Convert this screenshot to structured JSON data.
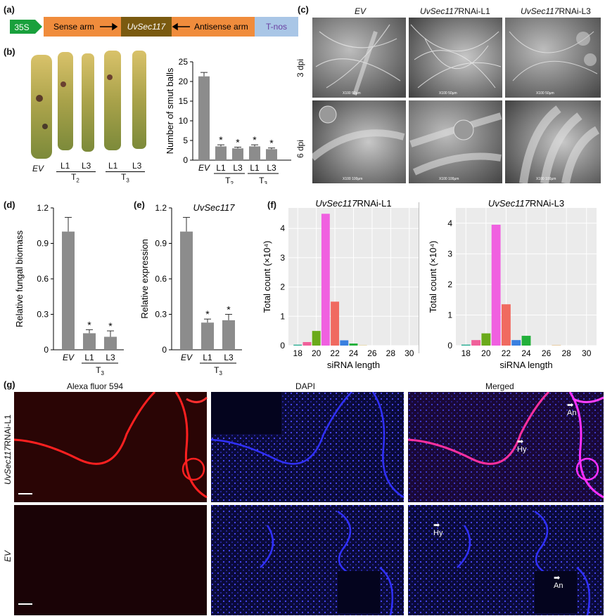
{
  "panel_labels": {
    "a": "(a)",
    "b": "(b)",
    "c": "(c)",
    "d": "(d)",
    "e": "(e)",
    "f": "(f)",
    "g": "(g)"
  },
  "construct": {
    "promoter": "35S",
    "sense": "Sense arm",
    "gene": "UvSec117",
    "antisense": "Antisense arm",
    "terminator": "T-nos"
  },
  "panel_b_photo": {
    "labels": [
      "EV",
      "L1",
      "L3",
      "L1",
      "L3"
    ],
    "groups": [
      {
        "label": "T",
        "sub": "2"
      },
      {
        "label": "T",
        "sub": "3"
      }
    ]
  },
  "panel_c": {
    "columns": [
      {
        "text": "EV",
        "italic": "EV",
        "rest": ""
      },
      {
        "text": "UvSec117RNAi-L1",
        "italic": "UvSec117",
        "rest": "RNAi-L1"
      },
      {
        "text": "UvSec117RNAi-L3",
        "italic": "UvSec117",
        "rest": "RNAi-L3"
      }
    ],
    "rows": [
      "3 dpi",
      "6 dpi"
    ],
    "sem_labels_top": [
      "X100",
      "50μm"
    ],
    "sem_labels_bottom": [
      "X100",
      "100μm"
    ]
  },
  "panel_g": {
    "columns": [
      "Alexa fluor 594",
      "DAPI",
      "Merged"
    ],
    "rows": [
      {
        "italic": "UvSec117",
        "rest": "RNAi-L1"
      },
      {
        "italic": "EV",
        "rest": ""
      }
    ],
    "arrows": [
      "An",
      "Hy",
      "Hy",
      "An"
    ]
  },
  "colors": {
    "bar": "#8c8c8c",
    "sense": "#f08c3c",
    "gene": "#7a5a10",
    "tnos": "#a9c6e6",
    "promoter": "#19a03c",
    "red": "#e81818",
    "blue": "#1818d8"
  },
  "chart_data": [
    {
      "id": "b",
      "type": "bar",
      "categories": [
        "EV",
        "L1",
        "L3",
        "L1",
        "L3"
      ],
      "values": [
        21.3,
        3.5,
        3.0,
        3.5,
        2.8
      ],
      "errors": [
        1.0,
        0.4,
        0.3,
        0.4,
        0.3
      ],
      "significant": [
        false,
        true,
        true,
        true,
        true
      ],
      "groups": [
        {
          "label": "T",
          "sub": "2"
        },
        {
          "label": "T",
          "sub": "3"
        }
      ],
      "ylabel": "Number of smut balls",
      "ylim": [
        0,
        25
      ],
      "yticks": [
        "0",
        "5",
        "10",
        "15",
        "20",
        "25"
      ]
    },
    {
      "id": "d",
      "type": "bar",
      "categories": [
        "EV",
        "L1",
        "L3"
      ],
      "values": [
        1.0,
        0.14,
        0.11
      ],
      "errors": [
        0.12,
        0.03,
        0.05
      ],
      "significant": [
        false,
        true,
        true
      ],
      "groups": [
        {
          "label": "T",
          "sub": "3"
        }
      ],
      "ylabel": "Relative fungal biomass",
      "ylim": [
        0,
        1.2
      ],
      "yticks": [
        "0",
        "0.3",
        "0.6",
        "0.9",
        "1.2"
      ]
    },
    {
      "id": "e",
      "type": "bar",
      "title": "UvSec117",
      "categories": [
        "EV",
        "L1",
        "L3"
      ],
      "values": [
        1.0,
        0.23,
        0.25
      ],
      "errors": [
        0.12,
        0.03,
        0.05
      ],
      "significant": [
        false,
        true,
        true
      ],
      "groups": [
        {
          "label": "T",
          "sub": "3"
        }
      ],
      "ylabel": "Relative expression",
      "ylim": [
        0,
        1.2
      ],
      "yticks": [
        "0",
        "0.3",
        "0.6",
        "0.9",
        "1.2"
      ]
    },
    {
      "id": "f1",
      "type": "bar",
      "title_italic": "UvSec117",
      "title_rest": "RNAi-L1",
      "categories": [
        "18",
        "19",
        "20",
        "21",
        "22",
        "23",
        "24",
        "25",
        "26",
        "27",
        "28",
        "29",
        "30"
      ],
      "values": [
        0.03,
        0.12,
        0.5,
        4.5,
        1.5,
        0.18,
        0.07,
        0.01,
        0.0,
        0.0,
        0.0,
        0.0,
        0.0
      ],
      "bar_colors": [
        "#1aa88a",
        "#f0609a",
        "#6aaa1a",
        "#f060e0",
        "#f06a60",
        "#3a80e0",
        "#22b03a",
        "#e0c060",
        "#888888",
        "#888888",
        "#888888",
        "#888888",
        "#888888"
      ],
      "xlabel": "siRNA length",
      "ylabel": "Total count (×10⁴)",
      "xticks": [
        "18",
        "20",
        "22",
        "24",
        "26",
        "28",
        "30"
      ],
      "yticks": [
        "0",
        "1",
        "2",
        "3",
        "4"
      ],
      "ylim": [
        0,
        4.7
      ]
    },
    {
      "id": "f2",
      "type": "bar",
      "title_italic": "UvSec117",
      "title_rest": "RNAi-L3",
      "categories": [
        "18",
        "19",
        "20",
        "21",
        "22",
        "23",
        "24",
        "25",
        "26",
        "27",
        "28",
        "29",
        "30"
      ],
      "values": [
        0.03,
        0.18,
        0.4,
        3.95,
        1.35,
        0.18,
        0.32,
        0.0,
        0.0,
        0.01,
        0.0,
        0.0,
        0.0
      ],
      "bar_colors": [
        "#1aa88a",
        "#f0609a",
        "#6aaa1a",
        "#f060e0",
        "#f06a60",
        "#3a80e0",
        "#22b03a",
        "#e0c060",
        "#888888",
        "#e0a040",
        "#888888",
        "#888888",
        "#888888"
      ],
      "xlabel": "siRNA length",
      "ylabel": "Total count (×10⁴)",
      "xticks": [
        "18",
        "20",
        "22",
        "24",
        "26",
        "28",
        "30"
      ],
      "yticks": [
        "0",
        "1",
        "2",
        "3",
        "4"
      ],
      "ylim": [
        0,
        4.5
      ]
    }
  ]
}
